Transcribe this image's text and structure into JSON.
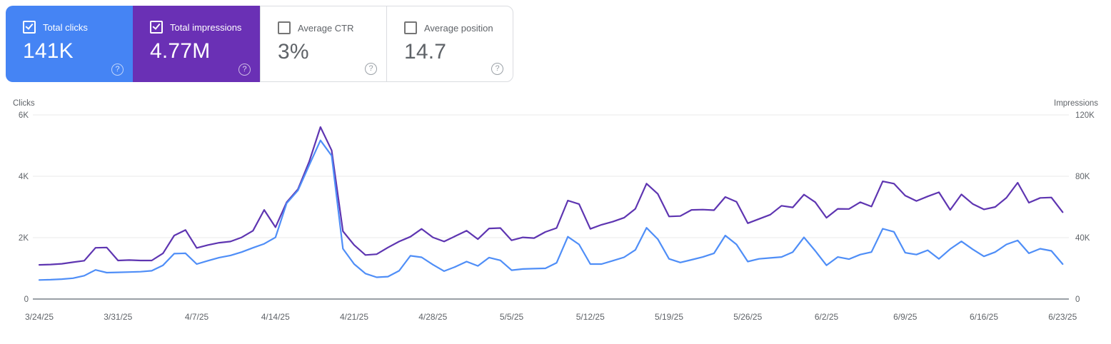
{
  "icons": {
    "help": "?"
  },
  "cards": [
    {
      "label": "Total clicks",
      "value": "141K",
      "checked": true,
      "bg": "#4584f4"
    },
    {
      "label": "Total impressions",
      "value": "4.77M",
      "checked": true,
      "bg": "#6a30b5"
    },
    {
      "label": "Average CTR",
      "value": "3%",
      "checked": false,
      "bg": null
    },
    {
      "label": "Average position",
      "value": "14.7",
      "checked": false,
      "bg": null
    }
  ],
  "chart_data": {
    "type": "line",
    "left_axis": {
      "label": "Clicks",
      "ticks": [
        "6K",
        "4K",
        "2K",
        "0"
      ],
      "min": 0,
      "max": 6000
    },
    "right_axis": {
      "label": "Impressions",
      "ticks": [
        "120K",
        "80K",
        "40K",
        "0"
      ],
      "min": 0,
      "max": 120000
    },
    "x_tick_labels": [
      "3/24/25",
      "3/31/25",
      "4/7/25",
      "4/14/25",
      "4/21/25",
      "4/28/25",
      "5/5/25",
      "5/12/25",
      "5/19/25",
      "5/26/25",
      "6/2/25",
      "6/9/25",
      "6/16/25",
      "6/23/25"
    ],
    "grid": true,
    "legend_position": "cards-top",
    "dates": [
      "3/24/25",
      "3/25/25",
      "3/26/25",
      "3/27/25",
      "3/28/25",
      "3/29/25",
      "3/30/25",
      "3/31/25",
      "4/1/25",
      "4/2/25",
      "4/3/25",
      "4/4/25",
      "4/5/25",
      "4/6/25",
      "4/7/25",
      "4/8/25",
      "4/9/25",
      "4/10/25",
      "4/11/25",
      "4/12/25",
      "4/13/25",
      "4/14/25",
      "4/15/25",
      "4/16/25",
      "4/17/25",
      "4/18/25",
      "4/19/25",
      "4/20/25",
      "4/21/25",
      "4/22/25",
      "4/23/25",
      "4/24/25",
      "4/25/25",
      "4/26/25",
      "4/27/25",
      "4/28/25",
      "4/29/25",
      "4/30/25",
      "5/1/25",
      "5/2/25",
      "5/3/25",
      "5/4/25",
      "5/5/25",
      "5/6/25",
      "5/7/25",
      "5/8/25",
      "5/9/25",
      "5/10/25",
      "5/11/25",
      "5/12/25",
      "5/13/25",
      "5/14/25",
      "5/15/25",
      "5/16/25",
      "5/17/25",
      "5/18/25",
      "5/19/25",
      "5/20/25",
      "5/21/25",
      "5/22/25",
      "5/23/25",
      "5/24/25",
      "5/25/25",
      "5/26/25",
      "5/27/25",
      "5/28/25",
      "5/29/25",
      "5/30/25",
      "5/31/25",
      "6/1/25",
      "6/2/25",
      "6/3/25",
      "6/4/25",
      "6/5/25",
      "6/6/25",
      "6/7/25",
      "6/8/25",
      "6/9/25",
      "6/10/25",
      "6/11/25",
      "6/12/25",
      "6/13/25",
      "6/14/25",
      "6/15/25",
      "6/16/25",
      "6/17/25",
      "6/18/25",
      "6/19/25",
      "6/20/25",
      "6/21/25",
      "6/22/25",
      "6/23/25"
    ],
    "series": [
      {
        "name": "Clicks",
        "axis": "left",
        "color": "#4f8ef7",
        "values": [
          620,
          630,
          650,
          680,
          760,
          950,
          860,
          870,
          880,
          890,
          920,
          1100,
          1480,
          1490,
          1140,
          1250,
          1350,
          1420,
          1530,
          1670,
          1800,
          2010,
          3120,
          3540,
          4360,
          5170,
          4670,
          1640,
          1140,
          830,
          710,
          730,
          920,
          1410,
          1360,
          1120,
          910,
          1050,
          1220,
          1080,
          1350,
          1260,
          940,
          980,
          990,
          1000,
          1180,
          2030,
          1780,
          1140,
          1140,
          1250,
          1360,
          1600,
          2320,
          1950,
          1310,
          1190,
          1280,
          1370,
          1490,
          2070,
          1780,
          1220,
          1310,
          1340,
          1370,
          1530,
          2010,
          1570,
          1100,
          1370,
          1300,
          1450,
          1530,
          2290,
          2190,
          1510,
          1450,
          1590,
          1310,
          1630,
          1880,
          1620,
          1390,
          1530,
          1780,
          1910,
          1490,
          1640,
          1570,
          1140
        ]
      },
      {
        "name": "Impressions",
        "axis": "right",
        "color": "#5e35b1",
        "values": [
          22300,
          22500,
          23000,
          24000,
          25000,
          33400,
          33600,
          25100,
          25400,
          25100,
          25100,
          29800,
          41400,
          45000,
          33300,
          35200,
          36700,
          37500,
          40200,
          44500,
          58100,
          46800,
          63100,
          71600,
          89500,
          112100,
          96900,
          44200,
          35200,
          28700,
          29200,
          33600,
          37500,
          40600,
          45700,
          40200,
          37500,
          41000,
          44500,
          39000,
          46000,
          46300,
          38300,
          40200,
          39700,
          43700,
          46300,
          64200,
          61900,
          45700,
          48400,
          50400,
          53000,
          58800,
          75200,
          68500,
          53800,
          54100,
          58100,
          58300,
          57900,
          66500,
          63400,
          49400,
          52200,
          55000,
          60800,
          59700,
          68100,
          63100,
          53000,
          58800,
          58700,
          63100,
          60300,
          76700,
          75200,
          67400,
          63900,
          66900,
          69600,
          58100,
          68200,
          62000,
          58400,
          60000,
          66000,
          75800,
          62800,
          65900,
          66200,
          56600
        ]
      }
    ]
  }
}
